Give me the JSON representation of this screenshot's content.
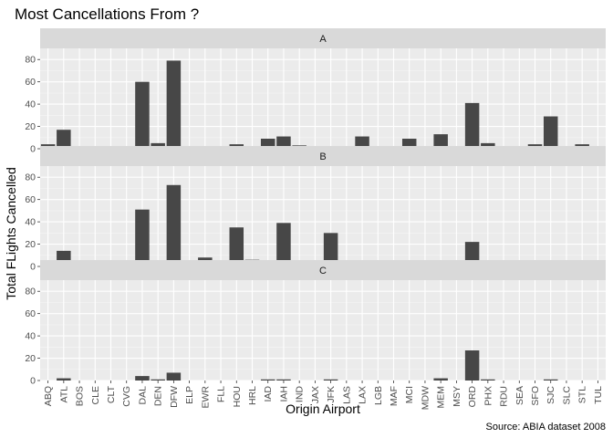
{
  "chart_data": {
    "type": "bar",
    "title": "Most Cancellations From ?",
    "caption": "Source: ABIA dataset 2008",
    "xlabel": "Origin Airport",
    "ylabel": "Total FLights Cancelled",
    "ylim": [
      0,
      90
    ],
    "yticks": [
      0,
      20,
      40,
      60,
      80
    ],
    "grid": true,
    "categories": [
      "ABQ",
      "ATL",
      "BOS",
      "CLE",
      "CLT",
      "CVG",
      "DAL",
      "DEN",
      "DFW",
      "ELP",
      "EWR",
      "FLL",
      "HOU",
      "HRL",
      "IAD",
      "IAH",
      "IND",
      "JAX",
      "JFK",
      "LAS",
      "LAX",
      "LGB",
      "MAF",
      "MCI",
      "MDW",
      "MEM",
      "MSY",
      "ORD",
      "PHX",
      "RDU",
      "SEA",
      "SFO",
      "SJC",
      "SLC",
      "STL",
      "TUL"
    ],
    "panels": [
      {
        "name": "A",
        "values": [
          4,
          17,
          1,
          2,
          1,
          null,
          60,
          5,
          79,
          1,
          1,
          null,
          4,
          1,
          9,
          11,
          3,
          1,
          2,
          2,
          11,
          2,
          2,
          9,
          null,
          13,
          null,
          41,
          5,
          2,
          2,
          4,
          29,
          null,
          4,
          1
        ]
      },
      {
        "name": "B",
        "values": [
          2,
          14,
          1,
          3,
          1,
          3,
          51,
          1,
          73,
          null,
          8,
          1,
          35,
          6,
          null,
          39,
          null,
          1,
          30,
          1,
          1,
          null,
          null,
          3,
          4,
          4,
          2,
          22,
          1,
          null,
          null,
          null,
          null,
          1,
          2,
          null
        ]
      },
      {
        "name": "C",
        "values": [
          null,
          2,
          null,
          null,
          null,
          null,
          4,
          1,
          7,
          null,
          null,
          null,
          null,
          null,
          1,
          1,
          null,
          null,
          1,
          null,
          null,
          null,
          null,
          null,
          null,
          2,
          null,
          27,
          1,
          null,
          null,
          null,
          1,
          null,
          null,
          null
        ]
      }
    ]
  }
}
